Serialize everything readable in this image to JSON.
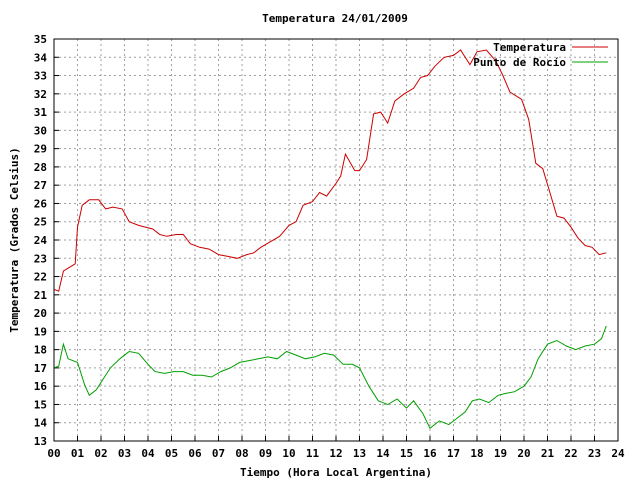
{
  "chart_data": {
    "type": "line",
    "title": "Temperatura 24/01/2009",
    "xlabel": "Tiempo (Hora Local Argentina)",
    "ylabel": "Temperatura (Grados Celsius)",
    "xlim": [
      0,
      24
    ],
    "ylim": [
      13,
      35
    ],
    "x_ticks": [
      "00",
      "01",
      "02",
      "03",
      "04",
      "05",
      "06",
      "07",
      "08",
      "09",
      "10",
      "11",
      "12",
      "13",
      "14",
      "15",
      "16",
      "17",
      "18",
      "19",
      "20",
      "21",
      "22",
      "23",
      "24"
    ],
    "y_ticks": [
      "13",
      "14",
      "15",
      "16",
      "17",
      "18",
      "19",
      "20",
      "21",
      "22",
      "23",
      "24",
      "25",
      "26",
      "27",
      "28",
      "29",
      "30",
      "31",
      "32",
      "33",
      "34",
      "35"
    ],
    "grid": true,
    "legend_position": "top-right",
    "series": [
      {
        "name": "Temperatura",
        "color": "#cc0000",
        "x": [
          0,
          0.2,
          0.4,
          0.9,
          1.0,
          1.2,
          1.5,
          1.9,
          2.2,
          2.5,
          2.9,
          3.2,
          3.6,
          4.2,
          4.5,
          4.8,
          5.2,
          5.5,
          5.8,
          6.2,
          6.6,
          7.0,
          7.4,
          7.8,
          8.2,
          8.5,
          8.8,
          9.2,
          9.6,
          10.0,
          10.3,
          10.6,
          11.0,
          11.3,
          11.6,
          12.0,
          12.2,
          12.4,
          12.8,
          13.0,
          13.3,
          13.6,
          13.9,
          14.2,
          14.5,
          14.9,
          15.3,
          15.6,
          15.9,
          16.2,
          16.6,
          17.0,
          17.3,
          17.7,
          18.0,
          18.4,
          18.8,
          19.1,
          19.4,
          19.9,
          20.2,
          20.5,
          20.8,
          21.1,
          21.4,
          21.7,
          22.0,
          22.3,
          22.6,
          22.9,
          23.2,
          23.5
        ],
        "values": [
          21.3,
          21.2,
          22.3,
          22.7,
          24.7,
          25.9,
          26.2,
          26.2,
          25.7,
          25.8,
          25.7,
          25.0,
          24.8,
          24.6,
          24.3,
          24.2,
          24.3,
          24.3,
          23.8,
          23.6,
          23.5,
          23.2,
          23.1,
          23.0,
          23.2,
          23.3,
          23.6,
          23.9,
          24.2,
          24.8,
          25.0,
          25.9,
          26.1,
          26.6,
          26.4,
          27.1,
          27.5,
          28.7,
          27.8,
          27.8,
          28.4,
          30.9,
          31.0,
          30.4,
          31.6,
          32.0,
          32.3,
          32.9,
          33.0,
          33.5,
          34.0,
          34.1,
          34.4,
          33.6,
          34.3,
          34.4,
          33.8,
          33.0,
          32.1,
          31.7,
          30.6,
          28.2,
          27.9,
          26.6,
          25.3,
          25.2,
          24.7,
          24.1,
          23.7,
          23.6,
          23.2,
          23.3
        ]
      },
      {
        "name": "Punto de Rocío",
        "color": "#00a000",
        "x": [
          0,
          0.2,
          0.4,
          0.6,
          1.0,
          1.3,
          1.5,
          1.8,
          2.1,
          2.4,
          2.8,
          3.2,
          3.6,
          4.0,
          4.3,
          4.7,
          5.1,
          5.5,
          5.9,
          6.3,
          6.7,
          7.1,
          7.5,
          7.9,
          8.3,
          8.7,
          9.1,
          9.5,
          9.9,
          10.3,
          10.7,
          11.1,
          11.5,
          11.9,
          12.3,
          12.7,
          13.0,
          13.4,
          13.8,
          14.2,
          14.6,
          15.0,
          15.3,
          15.7,
          16.0,
          16.4,
          16.8,
          17.1,
          17.5,
          17.8,
          18.1,
          18.5,
          18.9,
          19.2,
          19.6,
          20.0,
          20.3,
          20.6,
          21.0,
          21.4,
          21.8,
          22.2,
          22.6,
          23.0,
          23.3,
          23.5
        ],
        "values": [
          17.0,
          17.1,
          18.3,
          17.5,
          17.3,
          16.1,
          15.5,
          15.8,
          16.4,
          17.0,
          17.5,
          17.9,
          17.8,
          17.2,
          16.8,
          16.7,
          16.8,
          16.8,
          16.6,
          16.6,
          16.5,
          16.8,
          17.0,
          17.3,
          17.4,
          17.5,
          17.6,
          17.5,
          17.9,
          17.7,
          17.5,
          17.6,
          17.8,
          17.7,
          17.2,
          17.2,
          17.0,
          16.0,
          15.2,
          15.0,
          15.3,
          14.8,
          15.2,
          14.5,
          13.7,
          14.1,
          13.9,
          14.2,
          14.6,
          15.2,
          15.3,
          15.1,
          15.5,
          15.6,
          15.7,
          16.0,
          16.5,
          17.5,
          18.3,
          18.5,
          18.2,
          18.0,
          18.2,
          18.3,
          18.6,
          19.3
        ]
      }
    ]
  }
}
